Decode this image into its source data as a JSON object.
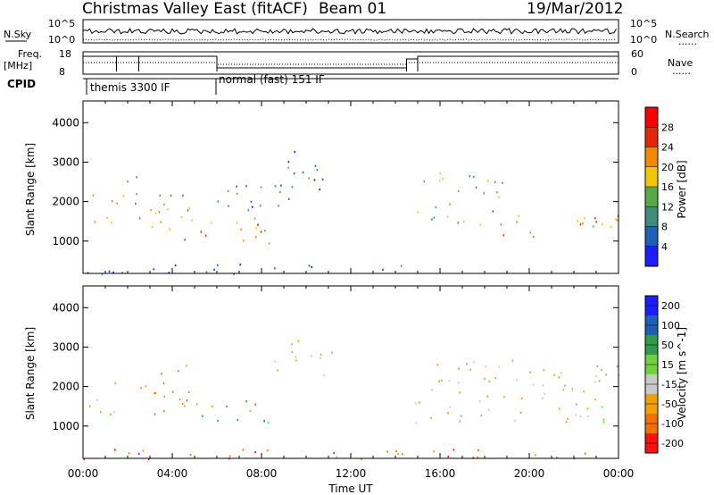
{
  "header": {
    "station": "Christmas Valley East (fitACF)",
    "beam": "Beam 01",
    "date": "19/Mar/2012"
  },
  "nsky_strip": {
    "left_label": "N.Sky",
    "left_ticks": [
      "10^5",
      "10^0"
    ],
    "right_ticks": [
      "10^5",
      "10^0"
    ],
    "right_label": "N.Search",
    "right_legend": "......"
  },
  "freq_strip": {
    "left_label_1": "Freq.",
    "left_label_2": "[MHz]",
    "left_ticks": [
      "18",
      "8"
    ],
    "right_ticks": [
      "60",
      "0"
    ],
    "right_label": "Nave",
    "right_legend": "......"
  },
  "cpid": {
    "label": "CPID",
    "modes": [
      {
        "name": "themis 3300 IF",
        "start_hour": 0.4
      },
      {
        "name": "normal (fast) 151 IF",
        "start_hour": 6.0
      }
    ]
  },
  "time_axis": {
    "label": "Time UT",
    "ticks": [
      "00:00",
      "04:00",
      "08:00",
      "12:00",
      "16:00",
      "20:00",
      "00:00"
    ],
    "range_hours": [
      0,
      24
    ]
  },
  "chart_data": [
    {
      "type": "heatmap",
      "name": "power",
      "ylabel": "Slant Range [km]",
      "yticks": [
        "1000",
        "2000",
        "3000",
        "4000"
      ],
      "ylim_km": [
        180,
        4550
      ],
      "colorbar_label": "Power [dB]",
      "colorbar_ticks": [
        "4",
        "8",
        "12",
        "16",
        "20",
        "24",
        "28"
      ],
      "colorbar_range": [
        0,
        32
      ],
      "colors": [
        "#1c1cff",
        "#1d5fb5",
        "#3f8c7d",
        "#57aa4a",
        "#f0c800",
        "#f28a00",
        "#e52800",
        "#ff0000"
      ],
      "scatter_regions": [
        {
          "t": [
            0.2,
            1.5
          ],
          "r": [
            1300,
            2300
          ],
          "value": 18
        },
        {
          "t": [
            1.5,
            2.5
          ],
          "r": [
            1800,
            2800
          ],
          "value": 14
        },
        {
          "t": [
            2.5,
            4.8
          ],
          "r": [
            1200,
            2600
          ],
          "value": 16
        },
        {
          "t": [
            4.5,
            8.5
          ],
          "r": [
            800,
            1600
          ],
          "value": 22
        },
        {
          "t": [
            6.0,
            10.0
          ],
          "r": [
            1800,
            2700
          ],
          "value": 8
        },
        {
          "t": [
            8.5,
            11.2
          ],
          "r": [
            2300,
            3300
          ],
          "value": 6
        },
        {
          "t": [
            14.8,
            18.8
          ],
          "r": [
            1400,
            2800
          ],
          "value": 14
        },
        {
          "t": [
            18.8,
            24.0
          ],
          "r": [
            1100,
            1800
          ],
          "value": 20
        },
        {
          "t": [
            0.0,
            14.5
          ],
          "r": [
            180,
            450
          ],
          "value": 5
        }
      ]
    },
    {
      "type": "heatmap",
      "name": "velocity",
      "ylabel": "Slant Range [km]",
      "yticks": [
        "1000",
        "2000",
        "3000",
        "4000"
      ],
      "ylim_km": [
        180,
        4550
      ],
      "colorbar_label": "Velocity [m s^-1]",
      "colorbar_ticks": [
        "200",
        "100",
        "50",
        "15",
        "-15",
        "-50",
        "-100",
        "-200"
      ],
      "colors": [
        "#1c1cff",
        "#1d5fb5",
        "#2e9a4a",
        "#6fd040",
        "#c8c8c8",
        "#f2a000",
        "#f07000",
        "#ff1010"
      ],
      "scatter_regions": [
        {
          "t": [
            0.2,
            1.5
          ],
          "r": [
            1300,
            2300
          ],
          "value": 0
        },
        {
          "t": [
            2.5,
            4.8
          ],
          "r": [
            1200,
            2600
          ],
          "value": -60
        },
        {
          "t": [
            4.5,
            8.5
          ],
          "r": [
            1000,
            1700
          ],
          "value": 60
        },
        {
          "t": [
            8.5,
            11.2
          ],
          "r": [
            2300,
            3300
          ],
          "value": 0
        },
        {
          "t": [
            14.8,
            24.0
          ],
          "r": [
            1100,
            2700
          ],
          "value": 0
        },
        {
          "t": [
            0.0,
            24.0
          ],
          "r": [
            180,
            450
          ],
          "value": -70
        }
      ]
    }
  ]
}
